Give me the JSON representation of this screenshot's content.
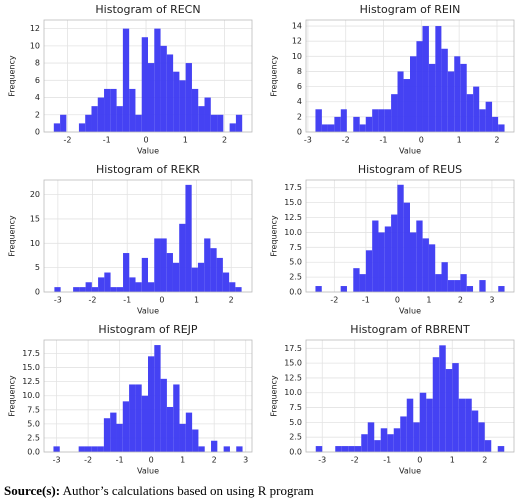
{
  "chart_data": [
    {
      "type": "histogram",
      "title": "Histogram of RECN",
      "xlabel": "Value",
      "ylabel": "Frequency",
      "color": "#3b38f2",
      "grid": true,
      "bins": [
        -2.35,
        -2.19,
        -2.03,
        -1.87,
        -1.71,
        -1.55,
        -1.39,
        -1.23,
        -1.07,
        -0.91,
        -0.75,
        -0.59,
        -0.43,
        -0.27,
        -0.11,
        0.05,
        0.21,
        0.37,
        0.53,
        0.69,
        0.85,
        1.01,
        1.17,
        1.33,
        1.49,
        1.65,
        1.81,
        1.97,
        2.13,
        2.29,
        2.45
      ],
      "values": [
        1,
        2,
        0,
        0,
        1,
        2,
        3,
        4,
        5,
        5,
        3,
        12,
        5,
        2,
        11,
        8,
        12,
        10,
        9,
        7,
        6,
        8,
        5,
        3,
        4,
        2,
        2,
        0,
        1,
        2
      ],
      "xlim": [
        -2.6,
        2.7
      ],
      "xticks": [
        -2,
        -1,
        0,
        1,
        2
      ],
      "ylim": [
        0,
        13
      ],
      "yticks": [
        0,
        2,
        4,
        6,
        8,
        10,
        12
      ]
    },
    {
      "type": "histogram",
      "title": "Histogram of REIN",
      "xlabel": "Value",
      "ylabel": "Frequency",
      "color": "#3b38f2",
      "grid": true,
      "bins": [
        -2.8,
        -2.63,
        -2.47,
        -2.3,
        -2.13,
        -1.97,
        -1.8,
        -1.63,
        -1.47,
        -1.3,
        -1.13,
        -0.97,
        -0.8,
        -0.63,
        -0.47,
        -0.3,
        -0.13,
        0.03,
        0.2,
        0.37,
        0.53,
        0.7,
        0.87,
        1.03,
        1.2,
        1.37,
        1.53,
        1.7,
        1.87,
        2.03,
        2.2
      ],
      "values": [
        3,
        1,
        1,
        2,
        3,
        0,
        2,
        1,
        2,
        3,
        3,
        3,
        5,
        8,
        7,
        10,
        12,
        14,
        9,
        14,
        11,
        8,
        10,
        9,
        5,
        6,
        3,
        4,
        2,
        1
      ],
      "xlim": [
        -3.05,
        2.45
      ],
      "xticks": [
        -3,
        -2,
        -1,
        0,
        1,
        2
      ],
      "ylim": [
        0,
        14.8
      ],
      "yticks": [
        0,
        2,
        4,
        6,
        8,
        10,
        12,
        14
      ]
    },
    {
      "type": "histogram",
      "title": "Histogram of REKR",
      "xlabel": "Value",
      "ylabel": "Frequency",
      "color": "#3b38f2",
      "grid": true,
      "bins": [
        -3.1,
        -2.92,
        -2.74,
        -2.56,
        -2.38,
        -2.2,
        -2.02,
        -1.84,
        -1.66,
        -1.48,
        -1.3,
        -1.12,
        -0.94,
        -0.76,
        -0.58,
        -0.4,
        -0.22,
        -0.04,
        0.14,
        0.32,
        0.5,
        0.68,
        0.86,
        1.04,
        1.22,
        1.4,
        1.58,
        1.76,
        1.94,
        2.12,
        2.3
      ],
      "values": [
        1,
        0,
        0,
        1,
        1,
        2,
        1,
        3,
        4,
        1,
        1,
        8,
        3,
        2,
        7,
        2,
        11,
        11,
        8,
        6,
        14,
        22,
        5,
        6,
        11,
        9,
        7,
        4,
        2,
        1
      ],
      "xlim": [
        -3.4,
        2.6
      ],
      "xticks": [
        -3,
        -2,
        -1,
        0,
        1,
        2
      ],
      "ylim": [
        0,
        23
      ],
      "yticks": [
        0,
        5,
        10,
        15,
        20
      ]
    },
    {
      "type": "histogram",
      "title": "Histogram of REUS",
      "xlabel": "Value",
      "ylabel": "Frequency",
      "color": "#3b38f2",
      "grid": true,
      "bins": [
        -2.6,
        -2.4,
        -2.2,
        -2,
        -1.8,
        -1.6,
        -1.4,
        -1.2,
        -1,
        -0.8,
        -0.6,
        -0.4,
        -0.2,
        0,
        0.2,
        0.4,
        0.6,
        0.8,
        1,
        1.2,
        1.4,
        1.6,
        1.8,
        2,
        2.2,
        2.4,
        2.6,
        2.8,
        3,
        3.2,
        3.4
      ],
      "values": [
        1,
        0,
        0,
        0,
        1,
        0,
        4,
        3,
        7,
        12,
        10,
        11,
        13,
        18,
        15,
        10,
        12,
        9,
        8,
        3,
        5,
        2,
        2,
        3,
        1,
        0,
        2,
        0,
        0,
        1
      ],
      "xlim": [
        -2.9,
        3.7
      ],
      "xticks": [
        -2,
        -1,
        0,
        1,
        2,
        3
      ],
      "ylim": [
        0,
        18.8
      ],
      "yticks": [
        {
          "value": 0,
          "label": "0.0"
        },
        {
          "value": 2.5,
          "label": "2.5"
        },
        {
          "value": 5,
          "label": "5.0"
        },
        {
          "value": 7.5,
          "label": "7.5"
        },
        {
          "value": 10,
          "label": "10.0"
        },
        {
          "value": 12.5,
          "label": "12.5"
        },
        {
          "value": 15,
          "label": "15.0"
        },
        {
          "value": 17.5,
          "label": "17.5"
        }
      ]
    },
    {
      "type": "histogram",
      "title": "Histogram of REJP",
      "xlabel": "Value",
      "ylabel": "Frequency",
      "color": "#3b38f2",
      "grid": true,
      "bins": [
        -3.1,
        -2.9,
        -2.7,
        -2.5,
        -2.3,
        -2.1,
        -1.9,
        -1.7,
        -1.5,
        -1.3,
        -1.1,
        -0.9,
        -0.7,
        -0.5,
        -0.3,
        -0.1,
        0.1,
        0.3,
        0.5,
        0.7,
        0.9,
        1.1,
        1.3,
        1.5,
        1.7,
        1.9,
        2.1,
        2.3,
        2.5,
        2.7,
        2.9
      ],
      "values": [
        1,
        0,
        0,
        0,
        1,
        1,
        1,
        1,
        6,
        7,
        5,
        9,
        12,
        12,
        10,
        17,
        19,
        13,
        8,
        12,
        5,
        7,
        4,
        1,
        0,
        2,
        0,
        1,
        0,
        1
      ],
      "xlim": [
        -3.4,
        3.2
      ],
      "xticks": [
        -3,
        -2,
        -1,
        0,
        1,
        2,
        3
      ],
      "ylim": [
        0,
        19.9
      ],
      "yticks": [
        {
          "value": 0,
          "label": "0.0"
        },
        {
          "value": 2.5,
          "label": "2.5"
        },
        {
          "value": 5,
          "label": "5.0"
        },
        {
          "value": 7.5,
          "label": "7.5"
        },
        {
          "value": 10,
          "label": "10.0"
        },
        {
          "value": 12.5,
          "label": "12.5"
        },
        {
          "value": 15,
          "label": "15.0"
        },
        {
          "value": 17.5,
          "label": "17.5"
        }
      ]
    },
    {
      "type": "histogram",
      "title": "Histogram of RBRENT",
      "xlabel": "Value",
      "ylabel": "Frequency",
      "color": "#3b38f2",
      "grid": true,
      "bins": [
        -3.2,
        -3,
        -2.8,
        -2.6,
        -2.4,
        -2.2,
        -2,
        -1.8,
        -1.6,
        -1.4,
        -1.2,
        -1,
        -0.8,
        -0.6,
        -0.4,
        -0.2,
        0,
        0.2,
        0.4,
        0.6,
        0.8,
        1,
        1.2,
        1.4,
        1.6,
        1.8,
        2,
        2.2,
        2.4,
        2.6
      ],
      "values": [
        1,
        0,
        0,
        1,
        1,
        1,
        1,
        3,
        5,
        2,
        4,
        3,
        4,
        6,
        9,
        5,
        10,
        9,
        16,
        18,
        14,
        15,
        9,
        9,
        7,
        5,
        2,
        0,
        1
      ],
      "xlim": [
        -3.5,
        2.9
      ],
      "xticks": [
        -3,
        -2,
        -1,
        0,
        1,
        2
      ],
      "ylim": [
        0,
        18.9
      ],
      "yticks": [
        {
          "value": 0,
          "label": "0.0"
        },
        {
          "value": 2.5,
          "label": "2.5"
        },
        {
          "value": 5,
          "label": "5.0"
        },
        {
          "value": 7.5,
          "label": "7.5"
        },
        {
          "value": 10,
          "label": "10.0"
        },
        {
          "value": 12.5,
          "label": "12.5"
        },
        {
          "value": 15,
          "label": "15.0"
        },
        {
          "value": 17.5,
          "label": "17.5"
        }
      ]
    }
  ],
  "caption": {
    "label": "Source(s):",
    "text": "Author’s calculations based on using R program"
  }
}
